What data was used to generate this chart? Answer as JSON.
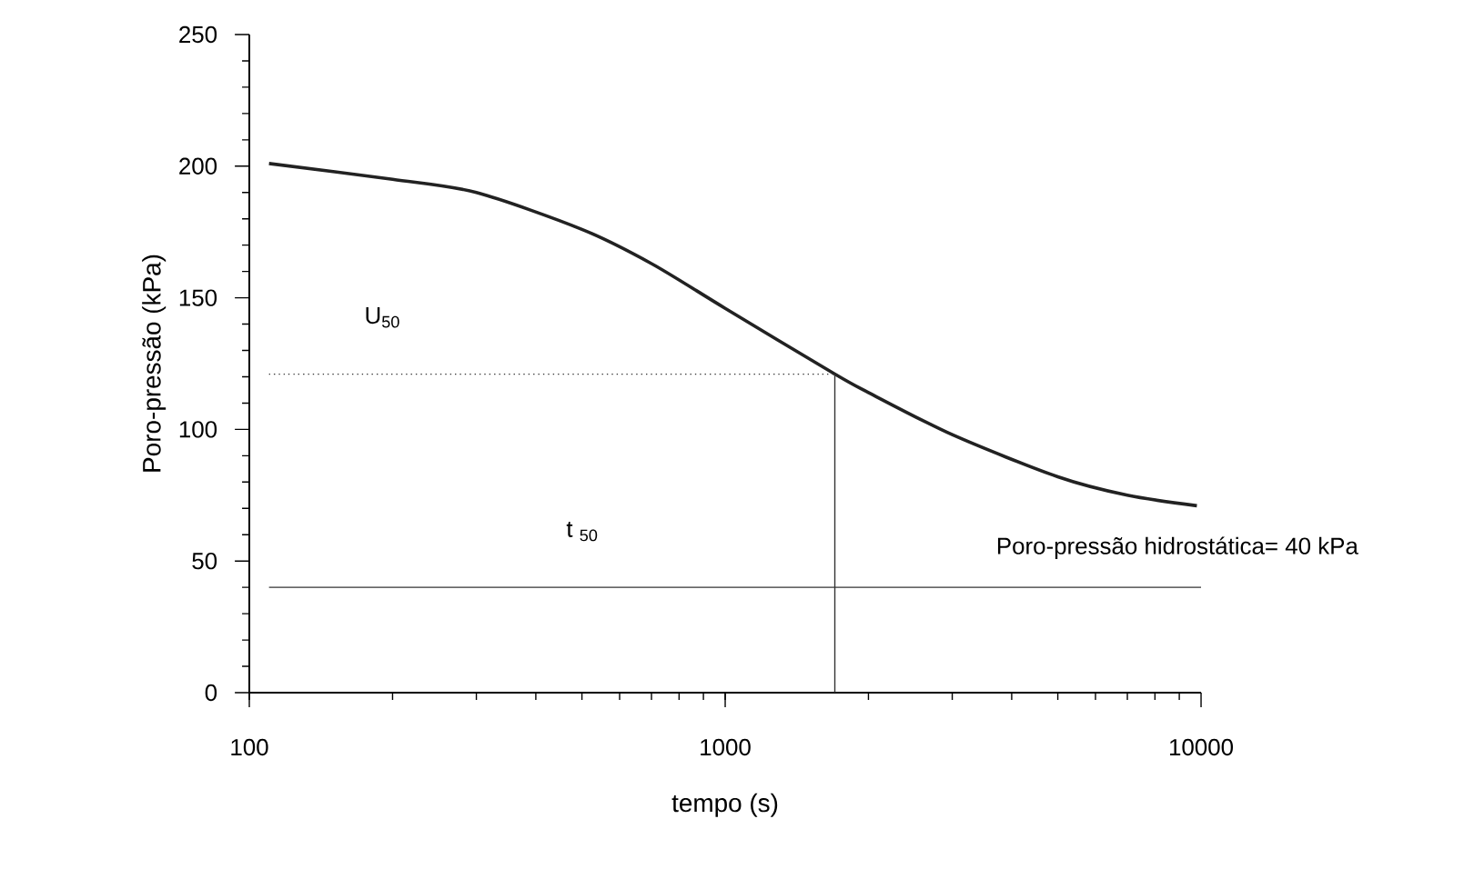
{
  "chart_data": {
    "type": "line",
    "xlabel": "tempo (s)",
    "ylabel": "Poro-pressão (kPa)",
    "log": "x",
    "xlim": [
      100,
      10000
    ],
    "ylim": [
      0,
      250
    ],
    "xticks": [
      100,
      1000,
      10000
    ],
    "yticks": [
      0,
      50,
      100,
      150,
      200,
      250
    ],
    "series": [
      {
        "color": "#222222",
        "line_style": "solid",
        "x": [
          110,
          200,
          300,
          500,
          700,
          1000,
          1700,
          2000,
          3000,
          5000,
          7000,
          9800
        ],
        "values": [
          201,
          195,
          190,
          176,
          163,
          146,
          121,
          114,
          98,
          82,
          75,
          71
        ]
      },
      {
        "color": "#333333",
        "line_style": "dotted",
        "x": [
          110,
          1700
        ],
        "values": [
          121,
          121
        ]
      },
      {
        "color": "#333333",
        "line_style": "solid",
        "x": [
          1700,
          1700
        ],
        "values": [
          0,
          121
        ]
      },
      {
        "color": "#333333",
        "line_style": "solid",
        "x": [
          110,
          10000
        ],
        "values": [
          40,
          40
        ]
      }
    ],
    "annotations": [
      "U$_{50}$",
      "t $_{50}$",
      "Poro-pressão hidrostática= 40 kPa"
    ]
  }
}
